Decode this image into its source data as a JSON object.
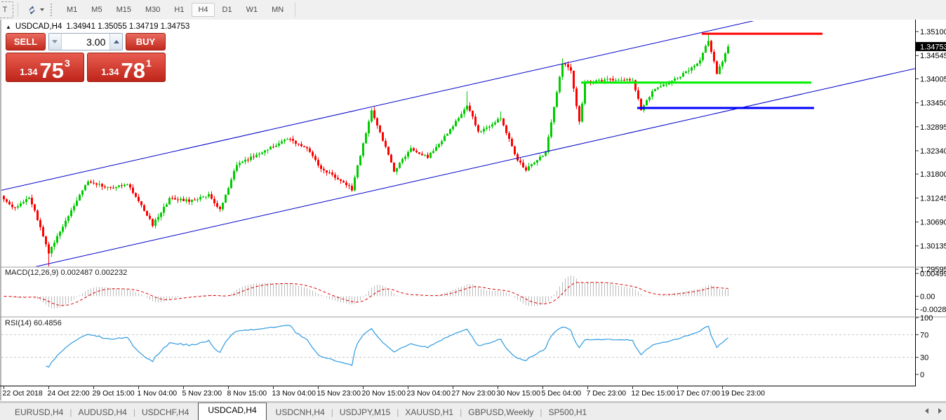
{
  "toolbar": {
    "text_tool_label": "T",
    "timeframes": [
      "M1",
      "M5",
      "M15",
      "M30",
      "H1",
      "H4",
      "D1",
      "W1",
      "MN"
    ],
    "active_timeframe": "H4"
  },
  "chart_header": {
    "collapse_arrow": "▲",
    "symbol_period": "USDCAD,H4",
    "ohlc": "1.34941 1.35055 1.34719 1.34753"
  },
  "one_click_trading": {
    "sell_label": "SELL",
    "buy_label": "BUY",
    "volume": "3.00",
    "sell_price": {
      "small": "1.34",
      "big": "75",
      "sup": "3"
    },
    "buy_price": {
      "small": "1.34",
      "big": "78",
      "sup": "1"
    }
  },
  "indicator_labels": {
    "macd": "MACD(12,26,9) 0.002487 0.002232",
    "rsi": "RSI(14) 60.4856"
  },
  "chart_data": {
    "type": "candlestick",
    "symbol": "USDCAD",
    "timeframe": "H4",
    "current_bid": "1.34753",
    "price_axis_ticks": [
      "1.35100",
      "1.34545",
      "1.34005",
      "1.33450",
      "1.32895",
      "1.32340",
      "1.31800",
      "1.31245",
      "1.30690",
      "1.30135",
      "1.29595"
    ],
    "price_anchors": [
      [
        1.351,
        45
      ],
      [
        1.29595,
        384
      ]
    ],
    "date_axis_labels": [
      "22 Oct 2018",
      "24 Oct 22:00",
      "29 Oct 15:00",
      "1 Nov 04:00",
      "5 Nov 23:00",
      "8 Nov 15:00",
      "13 Nov 04:00",
      "15 Nov 23:00",
      "20 Nov 15:00",
      "23 Nov 04:00",
      "27 Nov 23:00",
      "30 Nov 15:00",
      "5 Dec 04:00",
      "7 Dec 23:00",
      "12 Dec 15:00",
      "17 Dec 07:00",
      "19 Dec 23:00"
    ],
    "bars_per_label": 16,
    "candles": {
      "count": 259,
      "seed": 97,
      "noise": 0.0006,
      "wick": 0.0008,
      "bull_color": "#00CC00",
      "bear_color": "#FF0000",
      "close_waypoints": [
        [
          0,
          1.3121
        ],
        [
          4,
          1.31
        ],
        [
          9,
          1.3128
        ],
        [
          13,
          1.3058
        ],
        [
          16,
          1.2998
        ],
        [
          23,
          1.3085
        ],
        [
          30,
          1.3163
        ],
        [
          37,
          1.3148
        ],
        [
          44,
          1.3157
        ],
        [
          49,
          1.3108
        ],
        [
          53,
          1.3062
        ],
        [
          59,
          1.3122
        ],
        [
          67,
          1.3118
        ],
        [
          73,
          1.3131
        ],
        [
          77,
          1.3097
        ],
        [
          83,
          1.3203
        ],
        [
          91,
          1.3227
        ],
        [
          101,
          1.3262
        ],
        [
          108,
          1.3238
        ],
        [
          113,
          1.3192
        ],
        [
          119,
          1.317
        ],
        [
          124,
          1.3145
        ],
        [
          131,
          1.333
        ],
        [
          139,
          1.3187
        ],
        [
          145,
          1.324
        ],
        [
          151,
          1.3218
        ],
        [
          159,
          1.3283
        ],
        [
          165,
          1.334
        ],
        [
          169,
          1.328
        ],
        [
          172,
          1.3285
        ],
        [
          177,
          1.331
        ],
        [
          183,
          1.3212
        ],
        [
          186,
          1.319
        ],
        [
          190,
          1.3215
        ],
        [
          193,
          1.323
        ],
        [
          199,
          1.3437
        ],
        [
          202,
          1.342
        ],
        [
          205,
          1.33
        ],
        [
          207,
          1.3392
        ],
        [
          216,
          1.34
        ],
        [
          224,
          1.3398
        ],
        [
          227,
          1.333
        ],
        [
          232,
          1.338
        ],
        [
          238,
          1.3395
        ],
        [
          244,
          1.342
        ],
        [
          248,
          1.3445
        ],
        [
          251,
          1.349
        ],
        [
          254,
          1.3413
        ],
        [
          256,
          1.344
        ],
        [
          258,
          1.34753
        ]
      ],
      "spike_highs": [
        [
          165,
          1.3372
        ],
        [
          177,
          1.3325
        ],
        [
          199,
          1.3448
        ],
        [
          251,
          1.3505
        ]
      ],
      "spike_lows": [
        [
          16,
          1.2962
        ]
      ]
    },
    "annotations": {
      "channel": {
        "color": "#0000CC",
        "slope_per_bar": 0.0001465,
        "upper_price_at_bar0": 1.31431,
        "lower_price_at_bar0": 1.29483
      },
      "hlines": [
        {
          "price": 1.3505,
          "from_bar": 249,
          "to_bar": 292,
          "color": "#FF0000",
          "width": 3
        },
        {
          "price": 1.3392,
          "from_bar": 206,
          "to_bar": 288,
          "color": "#00EE00",
          "width": 3
        },
        {
          "price": 1.3333,
          "from_bar": 226,
          "to_bar": 289,
          "color": "#0000FF",
          "width": 3
        }
      ]
    },
    "macd": {
      "fast": 12,
      "slow": 26,
      "signal": 9,
      "axis_ticks": [
        [
          "0.004999",
          0.004999
        ],
        [
          "0.00",
          0
        ],
        [
          "-0.00286",
          -0.00286
        ]
      ],
      "anchors": [
        [
          0.004999,
          390
        ],
        [
          0,
          422.5
        ]
      ],
      "hist_color": "#BABABA",
      "signal_color": "#DD0000"
    },
    "rsi": {
      "period": 14,
      "axis_ticks": [
        [
          "100",
          100
        ],
        [
          "70",
          70
        ],
        [
          "30",
          30
        ],
        [
          "0",
          0
        ]
      ],
      "levels": [
        70,
        30
      ],
      "anchors": [
        [
          100,
          453
        ],
        [
          0,
          534
        ]
      ],
      "line_color": "#2E9BDF",
      "level_color": "#C8C8C8"
    }
  },
  "tabs": {
    "items": [
      "EURUSD,H4",
      "AUDUSD,H4",
      "USDCHF,H4",
      "USDCAD,H4",
      "USDCNH,H4",
      "USDJPY,M15",
      "XAUUSD,H1",
      "GBPUSD,Weekly",
      "SP500,H1"
    ],
    "active": "USDCAD,H4"
  }
}
